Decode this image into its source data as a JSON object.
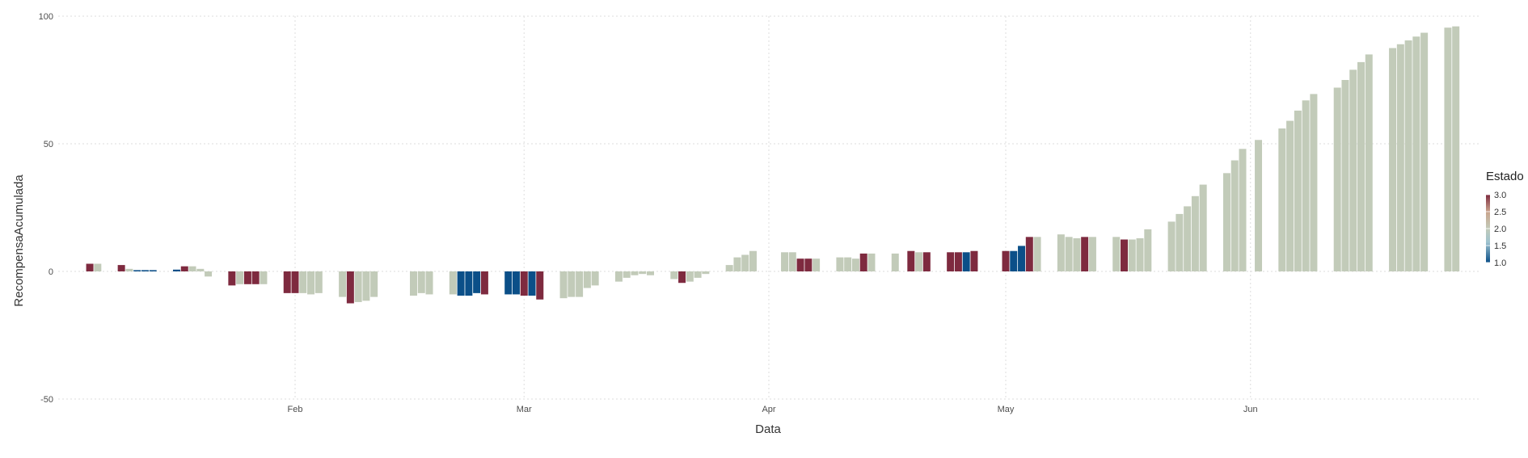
{
  "chart_data": {
    "type": "bar",
    "xlabel": "Data",
    "ylabel": "RecompensaAcumulada",
    "ylim": [
      -50,
      100
    ],
    "y_ticks": [
      "-50",
      "0",
      "50",
      "100"
    ],
    "x_ticks": [
      {
        "label": "Feb",
        "date": "2020-02-01"
      },
      {
        "label": "Mar",
        "date": "2020-03-01"
      },
      {
        "label": "Apr",
        "date": "2020-04-01"
      },
      {
        "label": "May",
        "date": "2020-05-01"
      },
      {
        "label": "Jun",
        "date": "2020-06-01"
      }
    ],
    "x_range": [
      "2020-01-02",
      "2020-06-30"
    ],
    "grid": true,
    "legend": {
      "title": "Estado",
      "placement": "right",
      "labels": [
        "3.0",
        "2.5",
        "2.0",
        "1.5",
        "1.0"
      ],
      "scale": [
        1.0,
        3.0
      ],
      "colors": {
        "1.0": "#0b4f88",
        "2.0": "#c2cbb9",
        "3.0": "#7e2a3f"
      }
    },
    "points": [
      [
        "2020-01-06",
        3.0,
        3
      ],
      [
        "2020-01-07",
        3.0,
        2
      ],
      [
        "2020-01-10",
        2.5,
        3
      ],
      [
        "2020-01-11",
        1.0,
        2.5
      ],
      [
        "2020-01-12",
        0.5,
        1
      ],
      [
        "2020-01-13",
        0.5,
        1
      ],
      [
        "2020-01-14",
        0.5,
        1
      ],
      [
        "2020-01-17",
        0.7,
        1
      ],
      [
        "2020-01-18",
        2.0,
        3
      ],
      [
        "2020-01-19",
        2.0,
        2
      ],
      [
        "2020-01-20",
        1.0,
        2
      ],
      [
        "2020-01-21",
        -2.0,
        2
      ],
      [
        "2020-01-24",
        -5.5,
        3
      ],
      [
        "2020-01-25",
        -5.0,
        2
      ],
      [
        "2020-01-26",
        -5.0,
        3
      ],
      [
        "2020-01-27",
        -5.0,
        3
      ],
      [
        "2020-01-28",
        -5.0,
        2
      ],
      [
        "2020-01-31",
        -8.5,
        3
      ],
      [
        "2020-02-01",
        -8.5,
        3
      ],
      [
        "2020-02-02",
        -8.5,
        2
      ],
      [
        "2020-02-03",
        -9.0,
        2
      ],
      [
        "2020-02-04",
        -8.5,
        2
      ],
      [
        "2020-02-07",
        -10.0,
        2
      ],
      [
        "2020-02-08",
        -12.5,
        3
      ],
      [
        "2020-02-09",
        -12.0,
        2
      ],
      [
        "2020-02-10",
        -11.5,
        2
      ],
      [
        "2020-02-11",
        -10.0,
        2
      ],
      [
        "2020-02-16",
        -9.5,
        2
      ],
      [
        "2020-02-17",
        -8.5,
        2
      ],
      [
        "2020-02-18",
        -9.0,
        2
      ],
      [
        "2020-02-21",
        -9.0,
        2
      ],
      [
        "2020-02-22",
        -9.5,
        1
      ],
      [
        "2020-02-23",
        -9.5,
        1
      ],
      [
        "2020-02-24",
        -8.5,
        1
      ],
      [
        "2020-02-25",
        -9.0,
        3
      ],
      [
        "2020-02-28",
        -9.0,
        1
      ],
      [
        "2020-02-29",
        -9.0,
        1
      ],
      [
        "2020-03-01",
        -9.5,
        3
      ],
      [
        "2020-03-02",
        -9.5,
        1
      ],
      [
        "2020-03-03",
        -11.0,
        3
      ],
      [
        "2020-03-06",
        -10.5,
        2
      ],
      [
        "2020-03-07",
        -10.0,
        2
      ],
      [
        "2020-03-08",
        -10.0,
        2
      ],
      [
        "2020-03-09",
        -6.5,
        2
      ],
      [
        "2020-03-10",
        -5.5,
        2
      ],
      [
        "2020-03-13",
        -4.0,
        2
      ],
      [
        "2020-03-14",
        -2.5,
        2
      ],
      [
        "2020-03-15",
        -1.5,
        2
      ],
      [
        "2020-03-16",
        -1.0,
        2
      ],
      [
        "2020-03-17",
        -1.5,
        2
      ],
      [
        "2020-03-20",
        -3.0,
        2
      ],
      [
        "2020-03-21",
        -4.5,
        3
      ],
      [
        "2020-03-22",
        -4.0,
        2
      ],
      [
        "2020-03-23",
        -2.5,
        2
      ],
      [
        "2020-03-24",
        -1.0,
        2
      ],
      [
        "2020-03-27",
        2.5,
        2
      ],
      [
        "2020-03-28",
        5.5,
        2
      ],
      [
        "2020-03-29",
        6.5,
        2
      ],
      [
        "2020-03-30",
        8.0,
        2
      ],
      [
        "2020-04-03",
        7.5,
        2
      ],
      [
        "2020-04-04",
        7.5,
        2
      ],
      [
        "2020-04-05",
        5.0,
        3
      ],
      [
        "2020-04-06",
        5.0,
        3
      ],
      [
        "2020-04-07",
        5.0,
        2
      ],
      [
        "2020-04-10",
        5.5,
        2
      ],
      [
        "2020-04-11",
        5.5,
        2
      ],
      [
        "2020-04-12",
        5.0,
        2
      ],
      [
        "2020-04-13",
        7.0,
        3
      ],
      [
        "2020-04-14",
        7.0,
        2
      ],
      [
        "2020-04-17",
        7.0,
        2
      ],
      [
        "2020-04-19",
        8.0,
        3
      ],
      [
        "2020-04-20",
        7.5,
        2
      ],
      [
        "2020-04-21",
        7.5,
        3
      ],
      [
        "2020-04-24",
        7.5,
        3
      ],
      [
        "2020-04-25",
        7.5,
        3
      ],
      [
        "2020-04-26",
        7.5,
        1
      ],
      [
        "2020-04-27",
        8.0,
        3
      ],
      [
        "2020-05-01",
        8.0,
        3
      ],
      [
        "2020-05-02",
        8.0,
        1
      ],
      [
        "2020-05-03",
        10.0,
        1
      ],
      [
        "2020-05-04",
        13.5,
        3
      ],
      [
        "2020-05-05",
        13.5,
        2
      ],
      [
        "2020-05-08",
        14.5,
        2
      ],
      [
        "2020-05-09",
        13.5,
        2
      ],
      [
        "2020-05-10",
        13.0,
        2
      ],
      [
        "2020-05-11",
        13.5,
        3
      ],
      [
        "2020-05-12",
        13.5,
        2
      ],
      [
        "2020-05-15",
        13.5,
        2
      ],
      [
        "2020-05-16",
        12.5,
        3
      ],
      [
        "2020-05-17",
        12.5,
        2
      ],
      [
        "2020-05-18",
        13.0,
        2
      ],
      [
        "2020-05-19",
        16.5,
        2
      ],
      [
        "2020-05-22",
        19.5,
        2
      ],
      [
        "2020-05-23",
        22.5,
        2
      ],
      [
        "2020-05-24",
        25.5,
        2
      ],
      [
        "2020-05-25",
        29.5,
        2
      ],
      [
        "2020-05-26",
        34.0,
        2
      ],
      [
        "2020-05-29",
        38.5,
        2
      ],
      [
        "2020-05-30",
        43.5,
        2
      ],
      [
        "2020-05-31",
        48.0,
        2
      ],
      [
        "2020-06-02",
        51.5,
        2
      ],
      [
        "2020-06-05",
        56.0,
        2
      ],
      [
        "2020-06-06",
        59.0,
        2
      ],
      [
        "2020-06-07",
        63.0,
        2
      ],
      [
        "2020-06-08",
        67.0,
        2
      ],
      [
        "2020-06-09",
        69.5,
        2
      ],
      [
        "2020-06-12",
        72.0,
        2
      ],
      [
        "2020-06-13",
        75.0,
        2
      ],
      [
        "2020-06-14",
        79.0,
        2
      ],
      [
        "2020-06-15",
        82.0,
        2
      ],
      [
        "2020-06-16",
        85.0,
        2
      ],
      [
        "2020-06-19",
        87.5,
        2
      ],
      [
        "2020-06-20",
        89.0,
        2
      ],
      [
        "2020-06-21",
        90.5,
        2
      ],
      [
        "2020-06-22",
        92.0,
        2
      ],
      [
        "2020-06-23",
        93.5,
        2
      ],
      [
        "2020-06-26",
        95.5,
        2
      ],
      [
        "2020-06-27",
        96.0,
        2
      ]
    ]
  }
}
